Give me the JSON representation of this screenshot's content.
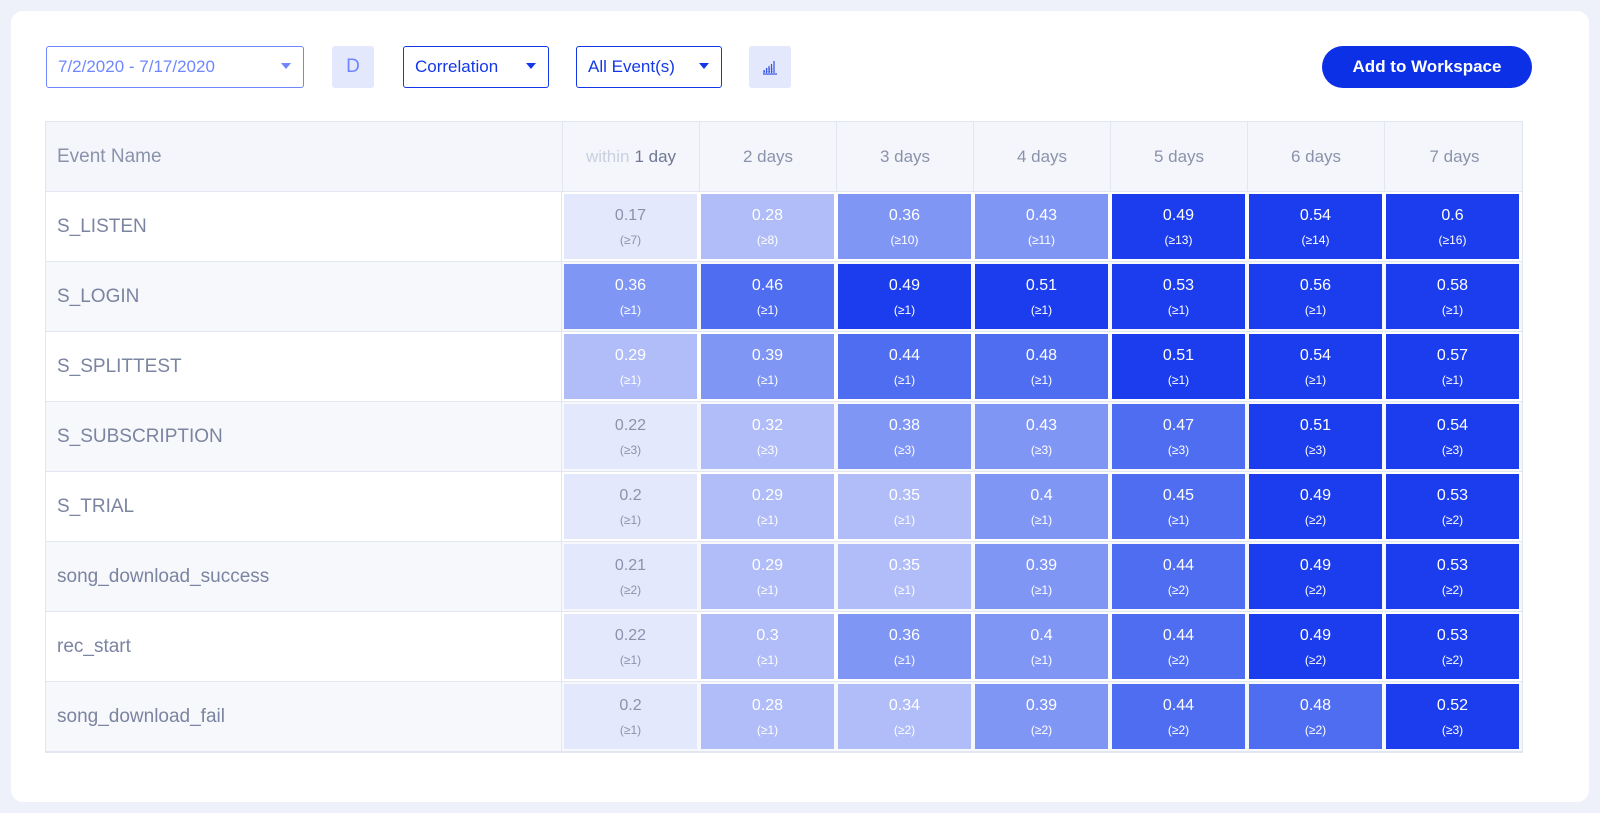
{
  "toolbar": {
    "date_range": "7/2/2020 - 7/17/2020",
    "granularity": "D",
    "analysis_type": "Correlation",
    "events_filter": "All Event(s)",
    "add_button": "Add to Workspace"
  },
  "colors": {
    "primary": "#0b30e6",
    "accent_light": "#e3e8fd",
    "text_muted": "#8a93ab",
    "scale": [
      "#e3e8fd",
      "#b0bdf8",
      "#8096f5",
      "#4f6df1",
      "#1b3ded"
    ]
  },
  "table": {
    "name_header": "Event Name",
    "within_prefix": "within",
    "columns": [
      "1 day",
      "2 days",
      "3 days",
      "4 days",
      "5 days",
      "6 days",
      "7 days"
    ],
    "rows": [
      {
        "name": "S_LISTEN",
        "cells": [
          [
            "0.17",
            "(≥7)"
          ],
          [
            "0.28",
            "(≥8)"
          ],
          [
            "0.36",
            "(≥10)"
          ],
          [
            "0.43",
            "(≥11)"
          ],
          [
            "0.49",
            "(≥13)"
          ],
          [
            "0.54",
            "(≥14)"
          ],
          [
            "0.6",
            "(≥16)"
          ]
        ]
      },
      {
        "name": "S_LOGIN",
        "cells": [
          [
            "0.36",
            "(≥1)"
          ],
          [
            "0.46",
            "(≥1)"
          ],
          [
            "0.49",
            "(≥1)"
          ],
          [
            "0.51",
            "(≥1)"
          ],
          [
            "0.53",
            "(≥1)"
          ],
          [
            "0.56",
            "(≥1)"
          ],
          [
            "0.58",
            "(≥1)"
          ]
        ]
      },
      {
        "name": "S_SPLITTEST",
        "cells": [
          [
            "0.29",
            "(≥1)"
          ],
          [
            "0.39",
            "(≥1)"
          ],
          [
            "0.44",
            "(≥1)"
          ],
          [
            "0.48",
            "(≥1)"
          ],
          [
            "0.51",
            "(≥1)"
          ],
          [
            "0.54",
            "(≥1)"
          ],
          [
            "0.57",
            "(≥1)"
          ]
        ]
      },
      {
        "name": "S_SUBSCRIPTION",
        "cells": [
          [
            "0.22",
            "(≥3)"
          ],
          [
            "0.32",
            "(≥3)"
          ],
          [
            "0.38",
            "(≥3)"
          ],
          [
            "0.43",
            "(≥3)"
          ],
          [
            "0.47",
            "(≥3)"
          ],
          [
            "0.51",
            "(≥3)"
          ],
          [
            "0.54",
            "(≥3)"
          ]
        ]
      },
      {
        "name": "S_TRIAL",
        "cells": [
          [
            "0.2",
            "(≥1)"
          ],
          [
            "0.29",
            "(≥1)"
          ],
          [
            "0.35",
            "(≥1)"
          ],
          [
            "0.4",
            "(≥1)"
          ],
          [
            "0.45",
            "(≥1)"
          ],
          [
            "0.49",
            "(≥2)"
          ],
          [
            "0.53",
            "(≥2)"
          ]
        ]
      },
      {
        "name": "song_download_success",
        "cells": [
          [
            "0.21",
            "(≥2)"
          ],
          [
            "0.29",
            "(≥1)"
          ],
          [
            "0.35",
            "(≥1)"
          ],
          [
            "0.39",
            "(≥1)"
          ],
          [
            "0.44",
            "(≥2)"
          ],
          [
            "0.49",
            "(≥2)"
          ],
          [
            "0.53",
            "(≥2)"
          ]
        ]
      },
      {
        "name": "rec_start",
        "cells": [
          [
            "0.22",
            "(≥1)"
          ],
          [
            "0.3",
            "(≥1)"
          ],
          [
            "0.36",
            "(≥1)"
          ],
          [
            "0.4",
            "(≥1)"
          ],
          [
            "0.44",
            "(≥2)"
          ],
          [
            "0.49",
            "(≥2)"
          ],
          [
            "0.53",
            "(≥2)"
          ]
        ]
      },
      {
        "name": "song_download_fail",
        "cells": [
          [
            "0.2",
            "(≥1)"
          ],
          [
            "0.28",
            "(≥1)"
          ],
          [
            "0.34",
            "(≥2)"
          ],
          [
            "0.39",
            "(≥2)"
          ],
          [
            "0.44",
            "(≥2)"
          ],
          [
            "0.48",
            "(≥2)"
          ],
          [
            "0.52",
            "(≥3)"
          ]
        ]
      }
    ]
  }
}
